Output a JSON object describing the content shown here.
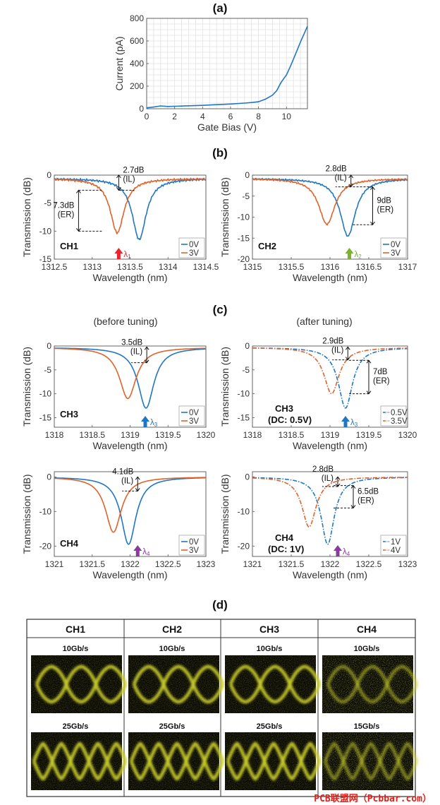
{
  "panel_labels": {
    "a": "(a)",
    "b": "(b)",
    "c": "(c)",
    "d": "(d)"
  },
  "subtitles": {
    "before": "(before tuning)",
    "after": "(after tuning)"
  },
  "colors": {
    "blue": "#1f77c4",
    "orange": "#e0622a",
    "red": "#e8242c",
    "green": "#7ab32e",
    "purple": "#8a3a9e",
    "eye": "#c9cc2a"
  },
  "watermark": "PCB联盟网（Pcbbar.com）",
  "chart_data": [
    {
      "id": "a",
      "type": "line",
      "xlabel": "Gate Bias (V)",
      "ylabel": "Current (pA)",
      "xlim": [
        0,
        11.5
      ],
      "ylim": [
        0,
        800
      ],
      "xticks": [
        0,
        2,
        4,
        6,
        8,
        10
      ],
      "yticks": [
        0,
        200,
        400,
        600,
        800
      ],
      "grid": true,
      "series": [
        {
          "color": "blue",
          "x": [
            0,
            0.5,
            1,
            1.5,
            2,
            3,
            4,
            5,
            6,
            7,
            7.5,
            8,
            8.5,
            9,
            9.3,
            9.6,
            10,
            10.3,
            10.6,
            11,
            11.5
          ],
          "y": [
            8,
            15,
            25,
            20,
            22,
            26,
            30,
            36,
            42,
            50,
            55,
            62,
            85,
            120,
            160,
            230,
            300,
            380,
            470,
            590,
            730
          ]
        }
      ]
    },
    {
      "id": "b1",
      "type": "line",
      "xlabel": "Wavelength (nm)",
      "ylabel": "Transmission (dB)",
      "xlim": [
        1312.5,
        1314.5
      ],
      "ylim": [
        -15,
        0
      ],
      "xticks": [
        1312.5,
        1313,
        1313.5,
        1314,
        1314.5
      ],
      "yticks": [
        0,
        -5,
        -10,
        -15
      ],
      "channel": "CH1",
      "lambda": "λ1",
      "lambda_x": 1313.35,
      "lambda_color": "red",
      "legend": [
        "0V",
        "3V"
      ],
      "series": [
        {
          "name": "0V",
          "color": "blue",
          "style": "solid",
          "center": 1313.62,
          "depth": -11.5,
          "width": 0.14,
          "floor": -0.6,
          "ripple": true
        },
        {
          "name": "3V",
          "color": "orange",
          "style": "solid",
          "center": 1313.33,
          "depth": -10.3,
          "width": 0.14,
          "floor": -0.6,
          "ripple": true
        }
      ],
      "annotations": [
        {
          "text": "2.7dB",
          "text2": "(IL)",
          "x": 1313.35,
          "y1": 0,
          "y2": -2.7,
          "side": "right"
        },
        {
          "text": "7.3dB",
          "text2": "(ER)",
          "x": 1312.82,
          "y1": -2.7,
          "y2": -10,
          "side": "left"
        }
      ]
    },
    {
      "id": "b2",
      "type": "line",
      "xlabel": "Wavelength (nm)",
      "ylabel": "Transmission (dB)",
      "xlim": [
        1315,
        1317
      ],
      "ylim": [
        -20,
        0
      ],
      "xticks": [
        1315,
        1315.5,
        1316,
        1316.5,
        1317
      ],
      "yticks": [
        0,
        -5,
        -10,
        -15,
        -20
      ],
      "channel": "CH2",
      "lambda": "λ2",
      "lambda_x": 1316.25,
      "lambda_color": "green",
      "legend": [
        "0V",
        "3V"
      ],
      "series": [
        {
          "name": "0V",
          "color": "blue",
          "style": "solid",
          "center": 1316.23,
          "depth": -14.5,
          "width": 0.15,
          "floor": -0.8,
          "ripple": true
        },
        {
          "name": "3V",
          "color": "orange",
          "style": "solid",
          "center": 1315.96,
          "depth": -11.7,
          "width": 0.16,
          "floor": -0.8,
          "ripple": true
        }
      ],
      "annotations": [
        {
          "text": "2.8dB",
          "text2": "(IL)",
          "x": 1316.27,
          "y1": 0,
          "y2": -2.8,
          "side": "left"
        },
        {
          "text": "9dB",
          "text2": "(ER)",
          "x": 1316.55,
          "y1": -2.8,
          "y2": -11.8,
          "side": "right"
        }
      ]
    },
    {
      "id": "c1",
      "type": "line",
      "xlabel": "Wavelength (nm)",
      "ylabel": "Transmission (dB)",
      "xlim": [
        1318,
        1320
      ],
      "ylim": [
        -17,
        0
      ],
      "xticks": [
        1318,
        1318.5,
        1319,
        1319.5,
        1320
      ],
      "yticks": [
        0,
        -5,
        -10,
        -15
      ],
      "channel": "CH3",
      "lambda": "λ3",
      "lambda_x": 1319.2,
      "lambda_color": "blue",
      "legend": [
        "0V",
        "3V"
      ],
      "series": [
        {
          "name": "0V",
          "color": "blue",
          "style": "solid",
          "center": 1319.21,
          "depth": -13,
          "width": 0.16,
          "floor": -0.3,
          "ripple": false
        },
        {
          "name": "3V",
          "color": "orange",
          "style": "solid",
          "center": 1318.97,
          "depth": -11,
          "width": 0.17,
          "floor": -0.3,
          "ripple": false
        }
      ],
      "annotations": [
        {
          "text": "3.5dB",
          "text2": "(IL)",
          "x": 1319.22,
          "y1": -0.2,
          "y2": -3.5,
          "side": "left"
        }
      ]
    },
    {
      "id": "c2",
      "type": "line",
      "xlabel": "Wavelength (nm)",
      "ylabel": "Transmission (dB)",
      "xlim": [
        1318,
        1320
      ],
      "ylim": [
        -17,
        0
      ],
      "xticks": [
        1318,
        1318.5,
        1319,
        1319.5,
        1320
      ],
      "yticks": [
        0,
        -5,
        -10,
        -15
      ],
      "channel": "CH3",
      "channel2": "(DC: 0.5V)",
      "lambda": "λ3",
      "lambda_x": 1319.2,
      "lambda_color": "blue",
      "legend": [
        "0.5V",
        "3.5V"
      ],
      "series": [
        {
          "name": "0.5V",
          "color": "blue",
          "style": "dashdot",
          "center": 1319.2,
          "depth": -13,
          "width": 0.14,
          "floor": -0.3,
          "ripple": false
        },
        {
          "name": "3.5V",
          "color": "orange",
          "style": "dashdot",
          "center": 1319.02,
          "depth": -10,
          "width": 0.15,
          "floor": -0.3,
          "ripple": false
        }
      ],
      "annotations": [
        {
          "text": "2.9dB",
          "text2": "(IL)",
          "x": 1319.23,
          "y1": -0.2,
          "y2": -2.9,
          "side": "left"
        },
        {
          "text": "7dB",
          "text2": "(ER)",
          "x": 1319.5,
          "y1": -3,
          "y2": -10,
          "side": "right"
        }
      ]
    },
    {
      "id": "c3",
      "type": "line",
      "xlabel": "Wavelength (nm)",
      "ylabel": "Transmission (dB)",
      "xlim": [
        1321,
        1323
      ],
      "ylim": [
        -23,
        1.5
      ],
      "xticks": [
        1321,
        1321.5,
        1322,
        1322.5,
        1323
      ],
      "yticks": [
        0,
        -10,
        -20
      ],
      "channel": "CH4",
      "lambda": "λ4",
      "lambda_x": 1322.1,
      "lambda_color": "purple",
      "legend": [
        "0V",
        "3V"
      ],
      "series": [
        {
          "name": "0V",
          "color": "blue",
          "style": "solid",
          "center": 1321.98,
          "depth": -19.5,
          "width": 0.15,
          "floor": 0,
          "ripple": false
        },
        {
          "name": "3V",
          "color": "orange",
          "style": "solid",
          "center": 1321.78,
          "depth": -16,
          "width": 0.16,
          "floor": 0,
          "ripple": false
        }
      ],
      "annotations": [
        {
          "text": "4.1dB",
          "text2": "(IL)",
          "x": 1322.1,
          "y1": 0,
          "y2": -4.1,
          "side": "left"
        }
      ]
    },
    {
      "id": "c4",
      "type": "line",
      "xlabel": "Wavelength (nm)",
      "ylabel": "Transmission (dB)",
      "xlim": [
        1321,
        1323
      ],
      "ylim": [
        -23,
        1.5
      ],
      "xticks": [
        1321,
        1321.5,
        1322,
        1322.5,
        1323
      ],
      "yticks": [
        0,
        -10,
        -20
      ],
      "channel": "CH4",
      "channel2": "(DC: 1V)",
      "lambda": "λ4",
      "lambda_x": 1322.1,
      "lambda_color": "purple",
      "legend": [
        "1V",
        "4V"
      ],
      "series": [
        {
          "name": "1V",
          "color": "blue",
          "style": "dashdot",
          "center": 1321.97,
          "depth": -19.5,
          "width": 0.13,
          "floor": 0,
          "ripple": false
        },
        {
          "name": "4V",
          "color": "orange",
          "style": "dashdot",
          "center": 1321.73,
          "depth": -14.5,
          "width": 0.14,
          "floor": 0,
          "ripple": false
        }
      ],
      "annotations": [
        {
          "text": "2.8dB",
          "text2": "(IL)",
          "x": 1322.1,
          "y1": 0,
          "y2": -2.8,
          "side": "left"
        },
        {
          "text": "6.5dB",
          "text2": "(ER)",
          "x": 1322.3,
          "y1": -2.5,
          "y2": -9,
          "side": "right"
        }
      ]
    }
  ],
  "eye_table": {
    "headers": [
      "CH1",
      "CH2",
      "CH3",
      "CH4"
    ],
    "rows": [
      {
        "rates": [
          "10Gb/s",
          "10Gb/s",
          "10Gb/s",
          "10Gb/s"
        ]
      },
      {
        "rates": [
          "25Gb/s",
          "25Gb/s",
          "25Gb/s",
          "15Gb/s"
        ]
      }
    ]
  }
}
